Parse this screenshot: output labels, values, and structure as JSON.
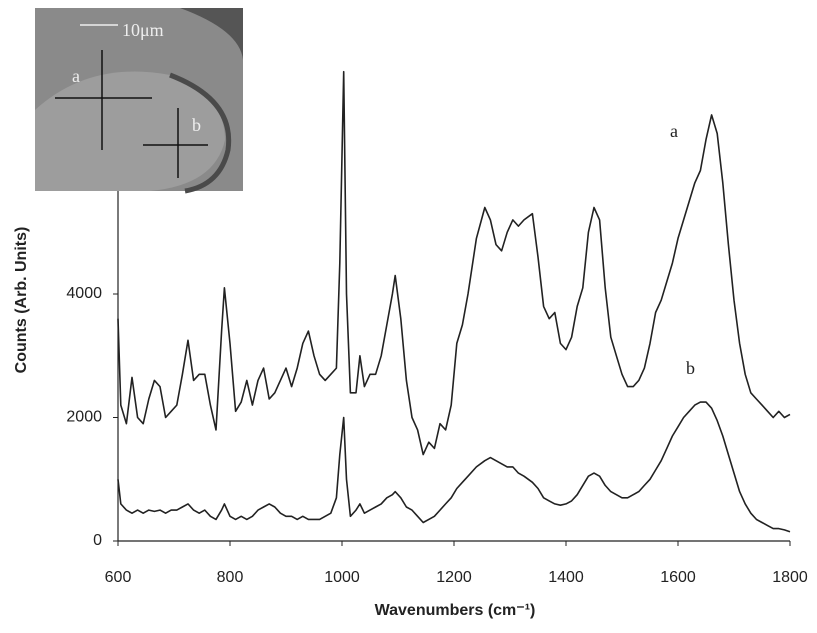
{
  "chart_data": {
    "type": "line",
    "xlabel": "Wavenumbers (cm⁻¹)",
    "ylabel": "Counts (Arb. Units)",
    "xlim": [
      600,
      1800
    ],
    "ylim": [
      0,
      8000
    ],
    "xticks": [
      600,
      800,
      1000,
      1200,
      1400,
      1600,
      1800
    ],
    "yticks": [
      0,
      2000,
      4000
    ],
    "x": [
      600,
      605,
      615,
      625,
      635,
      645,
      655,
      665,
      675,
      685,
      695,
      705,
      715,
      725,
      735,
      745,
      755,
      765,
      775,
      785,
      790,
      800,
      810,
      820,
      830,
      840,
      850,
      860,
      870,
      880,
      890,
      900,
      910,
      920,
      930,
      940,
      950,
      960,
      970,
      980,
      990,
      996,
      1003,
      1008,
      1015,
      1025,
      1032,
      1040,
      1050,
      1060,
      1070,
      1080,
      1090,
      1095,
      1105,
      1115,
      1125,
      1135,
      1145,
      1155,
      1165,
      1175,
      1185,
      1195,
      1205,
      1215,
      1225,
      1240,
      1255,
      1265,
      1275,
      1285,
      1295,
      1305,
      1315,
      1325,
      1340,
      1350,
      1360,
      1370,
      1380,
      1390,
      1400,
      1410,
      1420,
      1430,
      1440,
      1450,
      1460,
      1470,
      1480,
      1490,
      1500,
      1510,
      1520,
      1530,
      1540,
      1550,
      1560,
      1570,
      1580,
      1590,
      1600,
      1610,
      1620,
      1630,
      1640,
      1650,
      1660,
      1670,
      1680,
      1690,
      1700,
      1710,
      1720,
      1730,
      1740,
      1750,
      1760,
      1770,
      1780,
      1790,
      1800
    ],
    "series": [
      {
        "name": "a",
        "color": "#222222",
        "values": [
          3600,
          2200,
          1900,
          2650,
          2000,
          1900,
          2300,
          2600,
          2500,
          2000,
          2100,
          2200,
          2700,
          3250,
          2600,
          2700,
          2700,
          2200,
          1800,
          3400,
          4100,
          3200,
          2100,
          2250,
          2600,
          2200,
          2600,
          2800,
          2300,
          2400,
          2600,
          2800,
          2500,
          2800,
          3200,
          3400,
          3000,
          2700,
          2600,
          2700,
          2800,
          4500,
          7600,
          4000,
          2400,
          2400,
          3000,
          2500,
          2700,
          2700,
          3000,
          3500,
          4000,
          4300,
          3600,
          2600,
          2000,
          1800,
          1400,
          1600,
          1500,
          1900,
          1800,
          2200,
          3200,
          3500,
          4000,
          4900,
          5400,
          5200,
          4800,
          4700,
          5000,
          5200,
          5100,
          5200,
          5300,
          4600,
          3800,
          3600,
          3700,
          3200,
          3100,
          3300,
          3800,
          4100,
          5000,
          5400,
          5200,
          4100,
          3300,
          3000,
          2700,
          2500,
          2500,
          2600,
          2800,
          3200,
          3700,
          3900,
          4200,
          4500,
          4900,
          5200,
          5500,
          5800,
          6000,
          6500,
          6900,
          6600,
          5800,
          4800,
          3900,
          3200,
          2700,
          2400,
          2300,
          2200,
          2100,
          2000,
          2100,
          2000,
          2050
        ]
      },
      {
        "name": "b",
        "color": "#222222",
        "values": [
          1000,
          600,
          500,
          450,
          500,
          450,
          500,
          480,
          500,
          450,
          500,
          500,
          550,
          600,
          500,
          450,
          500,
          400,
          350,
          500,
          600,
          400,
          350,
          400,
          350,
          400,
          500,
          550,
          600,
          550,
          450,
          400,
          400,
          350,
          400,
          350,
          350,
          350,
          400,
          450,
          700,
          1400,
          2000,
          1000,
          400,
          500,
          600,
          450,
          500,
          550,
          600,
          700,
          750,
          800,
          700,
          550,
          500,
          400,
          300,
          350,
          400,
          500,
          600,
          700,
          850,
          950,
          1050,
          1200,
          1300,
          1350,
          1300,
          1250,
          1200,
          1200,
          1100,
          1050,
          950,
          850,
          700,
          650,
          600,
          580,
          600,
          650,
          750,
          900,
          1050,
          1100,
          1050,
          900,
          800,
          750,
          700,
          700,
          750,
          800,
          900,
          1000,
          1150,
          1300,
          1500,
          1700,
          1850,
          2000,
          2100,
          2200,
          2250,
          2250,
          2150,
          1950,
          1700,
          1400,
          1100,
          800,
          600,
          450,
          350,
          300,
          250,
          200,
          200,
          180,
          150
        ]
      }
    ],
    "inset": {
      "scale_label": "10μm",
      "labels": [
        "a",
        "b"
      ]
    }
  }
}
